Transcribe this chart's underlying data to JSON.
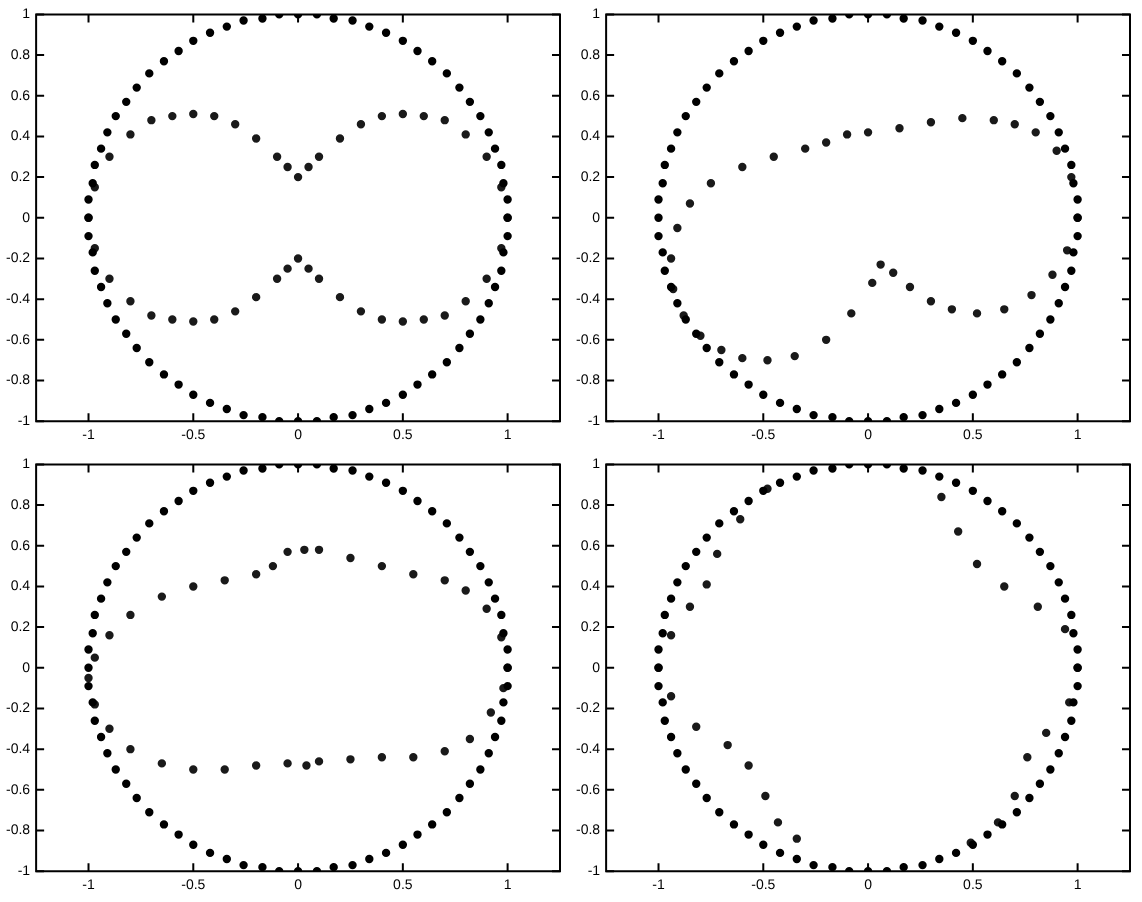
{
  "chart_data": [
    {
      "type": "scatter",
      "xlim": [
        -1.25,
        1.25
      ],
      "ylim": [
        -1,
        1
      ],
      "xticks": [
        -1,
        -0.5,
        0,
        0.5,
        1
      ],
      "yticks": [
        -1,
        -0.8,
        -0.6,
        -0.4,
        -0.2,
        0,
        0.2,
        0.4,
        0.6,
        0.8,
        1
      ],
      "grid": false,
      "legend": false,
      "marker": "circle",
      "series": [
        {
          "color": "#000000",
          "x": [
            1,
            1,
            0.98,
            0.97,
            0.94,
            0.91,
            0.87,
            0.82,
            0.77,
            0.71,
            0.64,
            0.57,
            0.5,
            0.42,
            0.34,
            0.26,
            0.17,
            0.09,
            0,
            -0.09,
            -0.17,
            -0.26,
            -0.34,
            -0.42,
            -0.5,
            -0.57,
            -0.64,
            -0.71,
            -0.77,
            -0.82,
            -0.87,
            -0.91,
            -0.94,
            -0.97,
            -0.98,
            -1,
            -1,
            -1,
            -0.98,
            -0.97,
            -0.94,
            -0.91,
            -0.87,
            -0.82,
            -0.77,
            -0.71,
            -0.64,
            -0.57,
            -0.5,
            -0.42,
            -0.34,
            -0.26,
            -0.17,
            -0.09,
            0,
            0.09,
            0.17,
            0.26,
            0.34,
            0.42,
            0.5,
            0.57,
            0.64,
            0.71,
            0.77,
            0.82,
            0.87,
            0.91,
            0.94,
            0.97,
            0.98,
            1
          ],
          "values": [
            0,
            0.09,
            0.17,
            0.26,
            0.34,
            0.42,
            0.5,
            0.57,
            0.64,
            0.71,
            0.77,
            0.82,
            0.87,
            0.91,
            0.94,
            0.97,
            0.98,
            1,
            1,
            1,
            0.98,
            0.97,
            0.94,
            0.91,
            0.87,
            0.82,
            0.77,
            0.71,
            0.64,
            0.57,
            0.5,
            0.42,
            0.34,
            0.26,
            0.17,
            0.09,
            0,
            -0.09,
            -0.17,
            -0.26,
            -0.34,
            -0.42,
            -0.5,
            -0.57,
            -0.64,
            -0.71,
            -0.77,
            -0.82,
            -0.87,
            -0.91,
            -0.94,
            -0.97,
            -0.98,
            -1,
            -1,
            -1,
            -0.98,
            -0.97,
            -0.94,
            -0.91,
            -0.87,
            -0.82,
            -0.77,
            -0.71,
            -0.64,
            -0.57,
            -0.5,
            -0.42,
            -0.34,
            -0.26,
            -0.17,
            -0.09
          ]
        },
        {
          "color": "#1a1a1a",
          "x": [
            -1,
            -0.97,
            -0.9,
            -0.8,
            -0.7,
            -0.6,
            -0.5,
            -0.4,
            -0.3,
            -0.2,
            -0.1,
            -0.05,
            0,
            0.05,
            0.1,
            0.2,
            0.3,
            0.4,
            0.5,
            0.6,
            0.7,
            0.8,
            0.9,
            0.97,
            1,
            0.97,
            0.9,
            0.8,
            0.7,
            0.6,
            0.5,
            0.4,
            0.3,
            0.2,
            0.1,
            0.05,
            0,
            -0.05,
            -0.1,
            -0.2,
            -0.3,
            -0.4,
            -0.5,
            -0.6,
            -0.7,
            -0.8,
            -0.9,
            -0.97
          ],
          "values": [
            0,
            0.15,
            0.3,
            0.41,
            0.48,
            0.5,
            0.51,
            0.5,
            0.46,
            0.39,
            0.3,
            0.25,
            0.2,
            0.25,
            0.3,
            0.39,
            0.46,
            0.5,
            0.51,
            0.5,
            0.48,
            0.41,
            0.3,
            0.15,
            0,
            -0.15,
            -0.3,
            -0.41,
            -0.48,
            -0.5,
            -0.51,
            -0.5,
            -0.46,
            -0.39,
            -0.3,
            -0.25,
            -0.2,
            -0.25,
            -0.3,
            -0.39,
            -0.46,
            -0.5,
            -0.51,
            -0.5,
            -0.48,
            -0.41,
            -0.3,
            -0.15
          ]
        }
      ]
    },
    {
      "type": "scatter",
      "xlim": [
        -1.25,
        1.25
      ],
      "ylim": [
        -1,
        1
      ],
      "xticks": [
        -1,
        -0.5,
        0,
        0.5,
        1
      ],
      "yticks": [
        -1,
        -0.8,
        -0.6,
        -0.4,
        -0.2,
        0,
        0.2,
        0.4,
        0.6,
        0.8,
        1
      ],
      "grid": false,
      "legend": false,
      "marker": "circle",
      "series": [
        {
          "color": "#000000",
          "x": [
            1,
            1,
            0.98,
            0.97,
            0.94,
            0.91,
            0.87,
            0.82,
            0.77,
            0.71,
            0.64,
            0.57,
            0.5,
            0.42,
            0.34,
            0.26,
            0.17,
            0.09,
            0,
            -0.09,
            -0.17,
            -0.26,
            -0.34,
            -0.42,
            -0.5,
            -0.57,
            -0.64,
            -0.71,
            -0.77,
            -0.82,
            -0.87,
            -0.91,
            -0.94,
            -0.97,
            -0.98,
            -1,
            -1,
            -1,
            -0.98,
            -0.97,
            -0.94,
            -0.91,
            -0.87,
            -0.82,
            -0.77,
            -0.71,
            -0.64,
            -0.57,
            -0.5,
            -0.42,
            -0.34,
            -0.26,
            -0.17,
            -0.09,
            0,
            0.09,
            0.17,
            0.26,
            0.34,
            0.42,
            0.5,
            0.57,
            0.64,
            0.71,
            0.77,
            0.82,
            0.87,
            0.91,
            0.94,
            0.97,
            0.98,
            1
          ],
          "values": [
            0,
            0.09,
            0.17,
            0.26,
            0.34,
            0.42,
            0.5,
            0.57,
            0.64,
            0.71,
            0.77,
            0.82,
            0.87,
            0.91,
            0.94,
            0.97,
            0.98,
            1,
            1,
            1,
            0.98,
            0.97,
            0.94,
            0.91,
            0.87,
            0.82,
            0.77,
            0.71,
            0.64,
            0.57,
            0.5,
            0.42,
            0.34,
            0.26,
            0.17,
            0.09,
            0,
            -0.09,
            -0.17,
            -0.26,
            -0.34,
            -0.42,
            -0.5,
            -0.57,
            -0.64,
            -0.71,
            -0.77,
            -0.82,
            -0.87,
            -0.91,
            -0.94,
            -0.97,
            -0.98,
            -1,
            -1,
            -1,
            -0.98,
            -0.97,
            -0.94,
            -0.91,
            -0.87,
            -0.82,
            -0.77,
            -0.71,
            -0.64,
            -0.57,
            -0.5,
            -0.42,
            -0.34,
            -0.26,
            -0.17,
            -0.09
          ]
        },
        {
          "color": "#1a1a1a",
          "x": [
            1,
            0.97,
            0.9,
            0.8,
            0.7,
            0.6,
            0.45,
            0.3,
            0.15,
            0,
            -0.1,
            -0.2,
            -0.3,
            -0.45,
            -0.6,
            -0.75,
            -0.85,
            -0.91,
            -0.94,
            -0.93,
            -0.88,
            -0.8,
            -0.7,
            -0.6,
            -0.48,
            -0.35,
            -0.2,
            -0.08,
            0.02,
            0.06,
            0.12,
            0.2,
            0.3,
            0.4,
            0.52,
            0.65,
            0.78,
            0.88,
            0.95
          ],
          "values": [
            0,
            0.2,
            0.33,
            0.42,
            0.46,
            0.48,
            0.49,
            0.47,
            0.44,
            0.42,
            0.41,
            0.37,
            0.34,
            0.3,
            0.25,
            0.17,
            0.07,
            -0.05,
            -0.2,
            -0.35,
            -0.48,
            -0.58,
            -0.65,
            -0.69,
            -0.7,
            -0.68,
            -0.6,
            -0.47,
            -0.32,
            -0.23,
            -0.27,
            -0.34,
            -0.41,
            -0.45,
            -0.47,
            -0.45,
            -0.38,
            -0.28,
            -0.16
          ]
        }
      ]
    },
    {
      "type": "scatter",
      "xlim": [
        -1.25,
        1.25
      ],
      "ylim": [
        -1,
        1
      ],
      "xticks": [
        -1,
        -0.5,
        0,
        0.5,
        1
      ],
      "yticks": [
        -1,
        -0.8,
        -0.6,
        -0.4,
        -0.2,
        0,
        0.2,
        0.4,
        0.6,
        0.8,
        1
      ],
      "grid": false,
      "legend": false,
      "marker": "circle",
      "series": [
        {
          "color": "#000000",
          "x": [
            1,
            1,
            0.98,
            0.97,
            0.94,
            0.91,
            0.87,
            0.82,
            0.77,
            0.71,
            0.64,
            0.57,
            0.5,
            0.42,
            0.34,
            0.26,
            0.17,
            0.09,
            0,
            -0.09,
            -0.17,
            -0.26,
            -0.34,
            -0.42,
            -0.5,
            -0.57,
            -0.64,
            -0.71,
            -0.77,
            -0.82,
            -0.87,
            -0.91,
            -0.94,
            -0.97,
            -0.98,
            -1,
            -1,
            -1,
            -0.98,
            -0.97,
            -0.94,
            -0.91,
            -0.87,
            -0.82,
            -0.77,
            -0.71,
            -0.64,
            -0.57,
            -0.5,
            -0.42,
            -0.34,
            -0.26,
            -0.17,
            -0.09,
            0,
            0.09,
            0.17,
            0.26,
            0.34,
            0.42,
            0.5,
            0.57,
            0.64,
            0.71,
            0.77,
            0.82,
            0.87,
            0.91,
            0.94,
            0.97,
            0.98,
            1
          ],
          "values": [
            0,
            0.09,
            0.17,
            0.26,
            0.34,
            0.42,
            0.5,
            0.57,
            0.64,
            0.71,
            0.77,
            0.82,
            0.87,
            0.91,
            0.94,
            0.97,
            0.98,
            1,
            1,
            1,
            0.98,
            0.97,
            0.94,
            0.91,
            0.87,
            0.82,
            0.77,
            0.71,
            0.64,
            0.57,
            0.5,
            0.42,
            0.34,
            0.26,
            0.17,
            0.09,
            0,
            -0.09,
            -0.17,
            -0.26,
            -0.34,
            -0.42,
            -0.5,
            -0.57,
            -0.64,
            -0.71,
            -0.77,
            -0.82,
            -0.87,
            -0.91,
            -0.94,
            -0.97,
            -0.98,
            -1,
            -1,
            -1,
            -0.98,
            -0.97,
            -0.94,
            -0.91,
            -0.87,
            -0.82,
            -0.77,
            -0.71,
            -0.64,
            -0.57,
            -0.5,
            -0.42,
            -0.34,
            -0.26,
            -0.17,
            -0.09
          ]
        },
        {
          "color": "#1a1a1a",
          "x": [
            1,
            0.97,
            0.9,
            0.8,
            0.7,
            0.55,
            0.4,
            0.25,
            0.1,
            0.03,
            -0.05,
            -0.12,
            -0.2,
            -0.35,
            -0.5,
            -0.65,
            -0.8,
            -0.9,
            -0.97,
            -1,
            -0.97,
            -0.9,
            -0.8,
            -0.65,
            -0.5,
            -0.35,
            -0.2,
            -0.05,
            0.04,
            0.1,
            0.25,
            0.4,
            0.55,
            0.7,
            0.82,
            0.92,
            0.98
          ],
          "values": [
            0,
            0.15,
            0.29,
            0.38,
            0.43,
            0.46,
            0.5,
            0.54,
            0.58,
            0.58,
            0.57,
            0.5,
            0.46,
            0.43,
            0.4,
            0.35,
            0.26,
            0.16,
            0.05,
            -0.05,
            -0.18,
            -0.3,
            -0.4,
            -0.47,
            -0.5,
            -0.5,
            -0.48,
            -0.47,
            -0.48,
            -0.46,
            -0.45,
            -0.44,
            -0.44,
            -0.41,
            -0.35,
            -0.22,
            -0.1
          ]
        }
      ]
    },
    {
      "type": "scatter",
      "xlim": [
        -1.25,
        1.25
      ],
      "ylim": [
        -1,
        1
      ],
      "xticks": [
        -1,
        -0.5,
        0,
        0.5,
        1
      ],
      "yticks": [
        -1,
        -0.8,
        -0.6,
        -0.4,
        -0.2,
        0,
        0.2,
        0.4,
        0.6,
        0.8,
        1
      ],
      "grid": false,
      "legend": false,
      "marker": "circle",
      "series": [
        {
          "color": "#000000",
          "x": [
            1,
            1,
            0.98,
            0.97,
            0.94,
            0.91,
            0.87,
            0.82,
            0.77,
            0.71,
            0.64,
            0.57,
            0.5,
            0.42,
            0.34,
            0.26,
            0.17,
            0.09,
            0,
            -0.09,
            -0.17,
            -0.26,
            -0.34,
            -0.42,
            -0.5,
            -0.57,
            -0.64,
            -0.71,
            -0.77,
            -0.82,
            -0.87,
            -0.91,
            -0.94,
            -0.97,
            -0.98,
            -1,
            -1,
            -1,
            -0.98,
            -0.97,
            -0.94,
            -0.91,
            -0.87,
            -0.82,
            -0.77,
            -0.71,
            -0.64,
            -0.57,
            -0.5,
            -0.42,
            -0.34,
            -0.26,
            -0.17,
            -0.09,
            0,
            0.09,
            0.17,
            0.26,
            0.34,
            0.42,
            0.5,
            0.57,
            0.64,
            0.71,
            0.77,
            0.82,
            0.87,
            0.91,
            0.94,
            0.97,
            0.98,
            1
          ],
          "values": [
            0,
            0.09,
            0.17,
            0.26,
            0.34,
            0.42,
            0.5,
            0.57,
            0.64,
            0.71,
            0.77,
            0.82,
            0.87,
            0.91,
            0.94,
            0.97,
            0.98,
            1,
            1,
            1,
            0.98,
            0.97,
            0.94,
            0.91,
            0.87,
            0.82,
            0.77,
            0.71,
            0.64,
            0.57,
            0.5,
            0.42,
            0.34,
            0.26,
            0.17,
            0.09,
            0,
            -0.09,
            -0.17,
            -0.26,
            -0.34,
            -0.42,
            -0.5,
            -0.57,
            -0.64,
            -0.71,
            -0.77,
            -0.82,
            -0.87,
            -0.91,
            -0.94,
            -0.97,
            -0.98,
            -1,
            -1,
            -1,
            -0.98,
            -0.97,
            -0.94,
            -0.91,
            -0.87,
            -0.82,
            -0.77,
            -0.71,
            -0.64,
            -0.57,
            -0.5,
            -0.42,
            -0.34,
            -0.26,
            -0.17,
            -0.09
          ]
        },
        {
          "color": "#1a1a1a",
          "x": [
            -0.48,
            -0.61,
            -0.72,
            -0.77,
            -0.85,
            -0.94,
            -1,
            -0.94,
            -0.82,
            -0.67,
            -0.57,
            -0.49,
            -0.43,
            -0.34
          ],
          "values": [
            0.88,
            0.73,
            0.56,
            0.41,
            0.3,
            0.16,
            0,
            -0.14,
            -0.29,
            -0.38,
            -0.48,
            -0.63,
            -0.76,
            -0.84
          ]
        },
        {
          "color": "#1a1a1a",
          "x": [
            0.35,
            0.43,
            0.52,
            0.65,
            0.81,
            0.94,
            1,
            0.96,
            0.85,
            0.76,
            0.7,
            0.62,
            0.49
          ],
          "values": [
            0.84,
            0.67,
            0.51,
            0.4,
            0.3,
            0.19,
            0,
            -0.17,
            -0.32,
            -0.44,
            -0.63,
            -0.76,
            -0.86
          ]
        }
      ]
    }
  ]
}
